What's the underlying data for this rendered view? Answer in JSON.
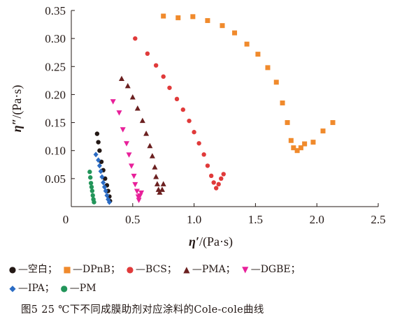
{
  "chart_data": {
    "type": "scatter",
    "xlabel": "η′/(Pa·s)",
    "ylabel": "η″/(Pa·s)",
    "xlim": [
      0,
      2.5
    ],
    "ylim": [
      0,
      0.35
    ],
    "x_ticks": [
      "0",
      "0.5",
      "1.0",
      "1.5",
      "2.0",
      "2.5"
    ],
    "y_ticks": [
      "0.05",
      "0.10",
      "0.15",
      "0.20",
      "0.25",
      "0.30",
      "0.35"
    ],
    "grid": false,
    "legend_position": "bottom",
    "series": [
      {
        "name": "空白",
        "marker": "circle",
        "color": "#231815",
        "points": [
          [
            0.21,
            0.13
          ],
          [
            0.22,
            0.115
          ],
          [
            0.23,
            0.1
          ],
          [
            0.245,
            0.08
          ],
          [
            0.26,
            0.065
          ],
          [
            0.275,
            0.05
          ],
          [
            0.29,
            0.038
          ],
          [
            0.3,
            0.028
          ],
          [
            0.31,
            0.018
          ],
          [
            0.315,
            0.01
          ]
        ]
      },
      {
        "name": "DPnB",
        "marker": "square",
        "color": "#f08a2c",
        "points": [
          [
            0.75,
            0.34
          ],
          [
            0.87,
            0.337
          ],
          [
            0.99,
            0.339
          ],
          [
            1.11,
            0.332
          ],
          [
            1.23,
            0.323
          ],
          [
            1.33,
            0.31
          ],
          [
            1.43,
            0.29
          ],
          [
            1.52,
            0.272
          ],
          [
            1.6,
            0.248
          ],
          [
            1.67,
            0.222
          ],
          [
            1.72,
            0.185
          ],
          [
            1.76,
            0.15
          ],
          [
            1.79,
            0.118
          ],
          [
            1.81,
            0.105
          ],
          [
            1.84,
            0.1
          ],
          [
            1.87,
            0.105
          ],
          [
            1.9,
            0.112
          ],
          [
            1.97,
            0.115
          ],
          [
            2.05,
            0.135
          ],
          [
            2.13,
            0.15
          ]
        ]
      },
      {
        "name": "BCS",
        "marker": "circle",
        "color": "#e03a3a",
        "points": [
          [
            0.52,
            0.3
          ],
          [
            0.62,
            0.273
          ],
          [
            0.69,
            0.252
          ],
          [
            0.75,
            0.232
          ],
          [
            0.8,
            0.212
          ],
          [
            0.86,
            0.192
          ],
          [
            0.91,
            0.173
          ],
          [
            0.96,
            0.153
          ],
          [
            1.0,
            0.133
          ],
          [
            1.04,
            0.113
          ],
          [
            1.08,
            0.093
          ],
          [
            1.11,
            0.073
          ],
          [
            1.14,
            0.055
          ],
          [
            1.16,
            0.043
          ],
          [
            1.18,
            0.033
          ],
          [
            1.2,
            0.04
          ],
          [
            1.22,
            0.05
          ],
          [
            1.24,
            0.058
          ]
        ]
      },
      {
        "name": "PMA",
        "marker": "triangle",
        "color": "#6b2020",
        "points": [
          [
            0.41,
            0.228
          ],
          [
            0.46,
            0.215
          ],
          [
            0.5,
            0.195
          ],
          [
            0.54,
            0.175
          ],
          [
            0.58,
            0.153
          ],
          [
            0.61,
            0.13
          ],
          [
            0.64,
            0.108
          ],
          [
            0.66,
            0.09
          ],
          [
            0.68,
            0.07
          ],
          [
            0.69,
            0.053
          ],
          [
            0.7,
            0.04
          ],
          [
            0.71,
            0.03
          ],
          [
            0.72,
            0.025
          ],
          [
            0.74,
            0.03
          ],
          [
            0.75,
            0.04
          ]
        ]
      },
      {
        "name": "DGBE",
        "marker": "triangle-down",
        "color": "#e8209a",
        "points": [
          [
            0.34,
            0.188
          ],
          [
            0.39,
            0.168
          ],
          [
            0.42,
            0.138
          ],
          [
            0.45,
            0.113
          ],
          [
            0.47,
            0.093
          ],
          [
            0.49,
            0.073
          ],
          [
            0.51,
            0.055
          ],
          [
            0.52,
            0.04
          ],
          [
            0.535,
            0.028
          ],
          [
            0.545,
            0.018
          ],
          [
            0.55,
            0.012
          ],
          [
            0.56,
            0.02
          ],
          [
            0.57,
            0.025
          ]
        ]
      },
      {
        "name": "IPA",
        "marker": "diamond",
        "color": "#2b6cc4",
        "points": [
          [
            0.2,
            0.093
          ],
          [
            0.22,
            0.083
          ],
          [
            0.23,
            0.073
          ],
          [
            0.24,
            0.063
          ],
          [
            0.25,
            0.053
          ],
          [
            0.26,
            0.043
          ],
          [
            0.27,
            0.035
          ],
          [
            0.28,
            0.028
          ],
          [
            0.29,
            0.02
          ],
          [
            0.3,
            0.013
          ],
          [
            0.31,
            0.008
          ]
        ]
      },
      {
        "name": "PM",
        "marker": "circle",
        "color": "#22955a",
        "points": [
          [
            0.15,
            0.062
          ],
          [
            0.155,
            0.052
          ],
          [
            0.16,
            0.042
          ],
          [
            0.165,
            0.035
          ],
          [
            0.17,
            0.028
          ],
          [
            0.175,
            0.02
          ],
          [
            0.18,
            0.013
          ],
          [
            0.185,
            0.008
          ]
        ]
      }
    ]
  },
  "legend": [
    {
      "label": "—空白；",
      "color": "#231815",
      "symbol": "●"
    },
    {
      "label": "—DPnB；",
      "color": "#f08a2c",
      "symbol": "■"
    },
    {
      "label": "—BCS；",
      "color": "#e03a3a",
      "symbol": "●"
    },
    {
      "label": "—PMA；",
      "color": "#6b2020",
      "symbol": "▲"
    },
    {
      "label": "—DGBE；",
      "color": "#e8209a",
      "symbol": "▼"
    },
    {
      "label": "—IPA；",
      "color": "#2b6cc4",
      "symbol": "◆"
    },
    {
      "label": "—PM",
      "color": "#22955a",
      "symbol": "●"
    }
  ],
  "caption": "图5   25 ℃下不同成膜助剂对应涂料的Cole-cole曲线"
}
